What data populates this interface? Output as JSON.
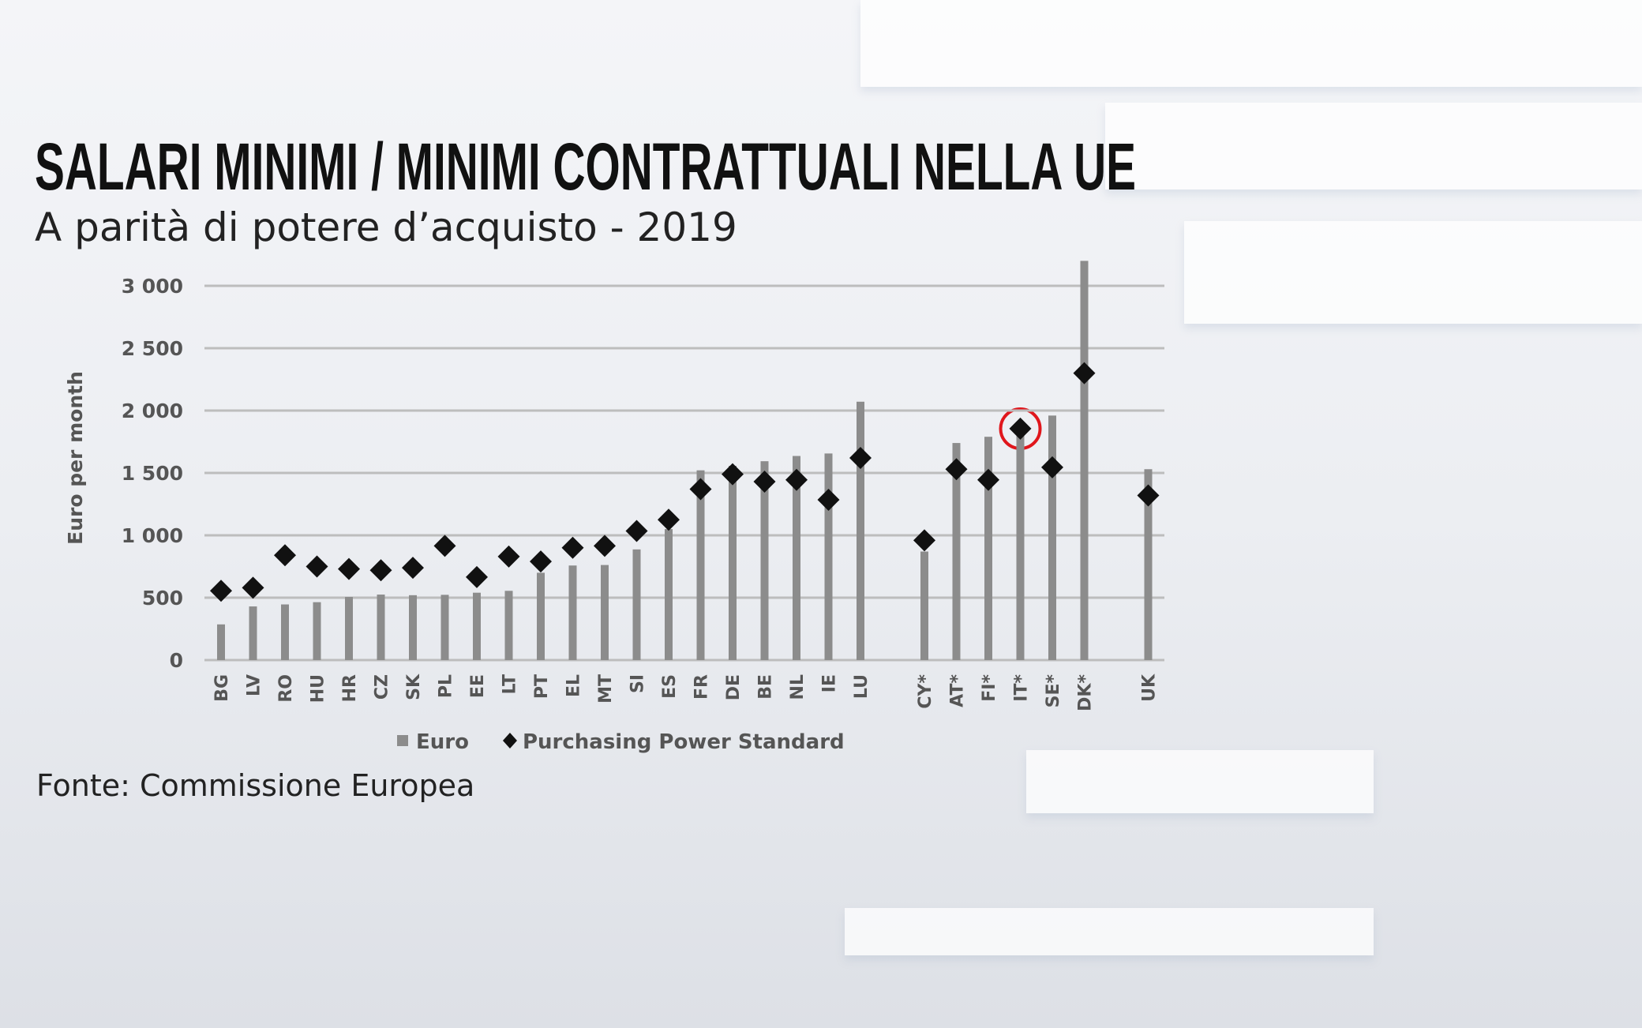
{
  "chart_data": {
    "type": "bar-scatter",
    "title": "SALARI MINIMI / MINIMI CONTRATTUALI NELLA UE",
    "subtitle": "A parità di potere d’acquisto - 2019",
    "y_label": "Euro per month",
    "source": "Fonte:  Commissione Europea",
    "categories": [
      "BG",
      "LV",
      "RO",
      "HU",
      "HR",
      "CZ",
      "SK",
      "PL",
      "EE",
      "LT",
      "PT",
      "EL",
      "MT",
      "SI",
      "ES",
      "FR",
      "DE",
      "BE",
      "NL",
      "IE",
      "LU",
      null,
      "CY*",
      "AT*",
      "FI*",
      "IT*",
      "SE*",
      "DK*",
      null,
      "UK"
    ],
    "series": [
      {
        "name": "Euro",
        "color": "#8c8c8c",
        "marker": "bar",
        "values": [
          286,
          430,
          446,
          464,
          506,
          525,
          520,
          523,
          540,
          555,
          700,
          758,
          762,
          887,
          1050,
          1521,
          1557,
          1594,
          1636,
          1656,
          2071,
          null,
          870,
          1740,
          1790,
          1800,
          1960,
          3200,
          null,
          1530
        ]
      },
      {
        "name": "Purchasing Power Standard",
        "color": "#111111",
        "marker": "diamond",
        "values": [
          555,
          580,
          840,
          750,
          730,
          720,
          740,
          915,
          665,
          830,
          790,
          900,
          915,
          1035,
          1125,
          1370,
          1490,
          1430,
          1445,
          1285,
          1620,
          null,
          960,
          1530,
          1445,
          1855,
          1545,
          2300,
          null,
          1320
        ]
      }
    ],
    "ylim": [
      0,
      3250
    ],
    "yticks": [
      0,
      500,
      {
        "value": 1000,
        "label": "1 000"
      },
      {
        "value": 1500,
        "label": "1 500"
      },
      {
        "value": 2000,
        "label": "2 000"
      },
      {
        "value": 2500,
        "label": "2 500"
      },
      {
        "value": 3000,
        "label": "3 000"
      }
    ],
    "grid": true
  }
}
